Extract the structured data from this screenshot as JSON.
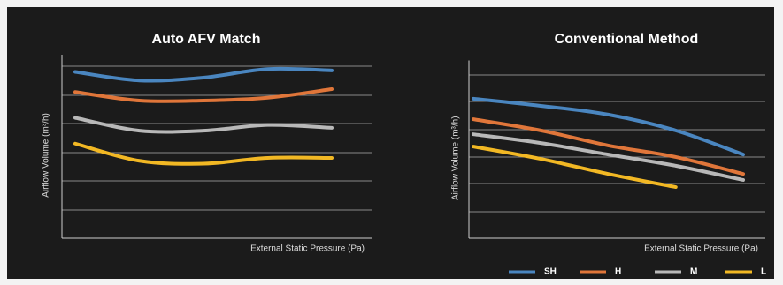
{
  "chart_data": [
    {
      "type": "line",
      "title": "Auto AFV Match",
      "x_label": "External Static Pressure (Pa)",
      "y_label": "Airflow Volume (m³/h)",
      "x": [
        0,
        2.5,
        5,
        7.5,
        10
      ],
      "xlim": [
        0,
        10
      ],
      "ylim": [
        0,
        6.4
      ],
      "grid": true,
      "series": [
        {
          "color": "#4a86c0",
          "values": [
            5.8,
            5.5,
            5.6,
            5.9,
            5.85
          ]
        },
        {
          "color": "#e0763a",
          "values": [
            5.1,
            4.8,
            4.8,
            4.9,
            5.2
          ]
        },
        {
          "color": "#b8b8b8",
          "values": [
            4.2,
            3.75,
            3.75,
            3.95,
            3.85
          ]
        },
        {
          "color": "#f2b824",
          "values": [
            3.3,
            2.7,
            2.6,
            2.8,
            2.8
          ]
        }
      ]
    },
    {
      "type": "line",
      "title": "Conventional Method",
      "x_label": "External Static Pressure (Pa)",
      "y_label": "Airflow Volume (m³/h)",
      "x": [
        0,
        2.5,
        5,
        7.5,
        10
      ],
      "xlim": [
        0,
        10
      ],
      "ylim": [
        0,
        6.5
      ],
      "grid": true,
      "legend": "bottom",
      "series": [
        {
          "name": "SH",
          "color": "#4a86c0",
          "values": [
            5.1,
            4.84,
            4.52,
            3.94,
            3.06
          ]
        },
        {
          "name": "H",
          "color": "#e0763a",
          "values": [
            4.35,
            3.94,
            3.39,
            2.97,
            2.35
          ]
        },
        {
          "name": "M",
          "color": "#b8b8b8",
          "values": [
            3.8,
            3.48,
            3.06,
            2.65,
            2.13
          ]
        },
        {
          "name": "L",
          "color": "#f2b824",
          "values": [
            3.35,
            2.9,
            2.35,
            1.87,
            null
          ]
        }
      ]
    }
  ]
}
